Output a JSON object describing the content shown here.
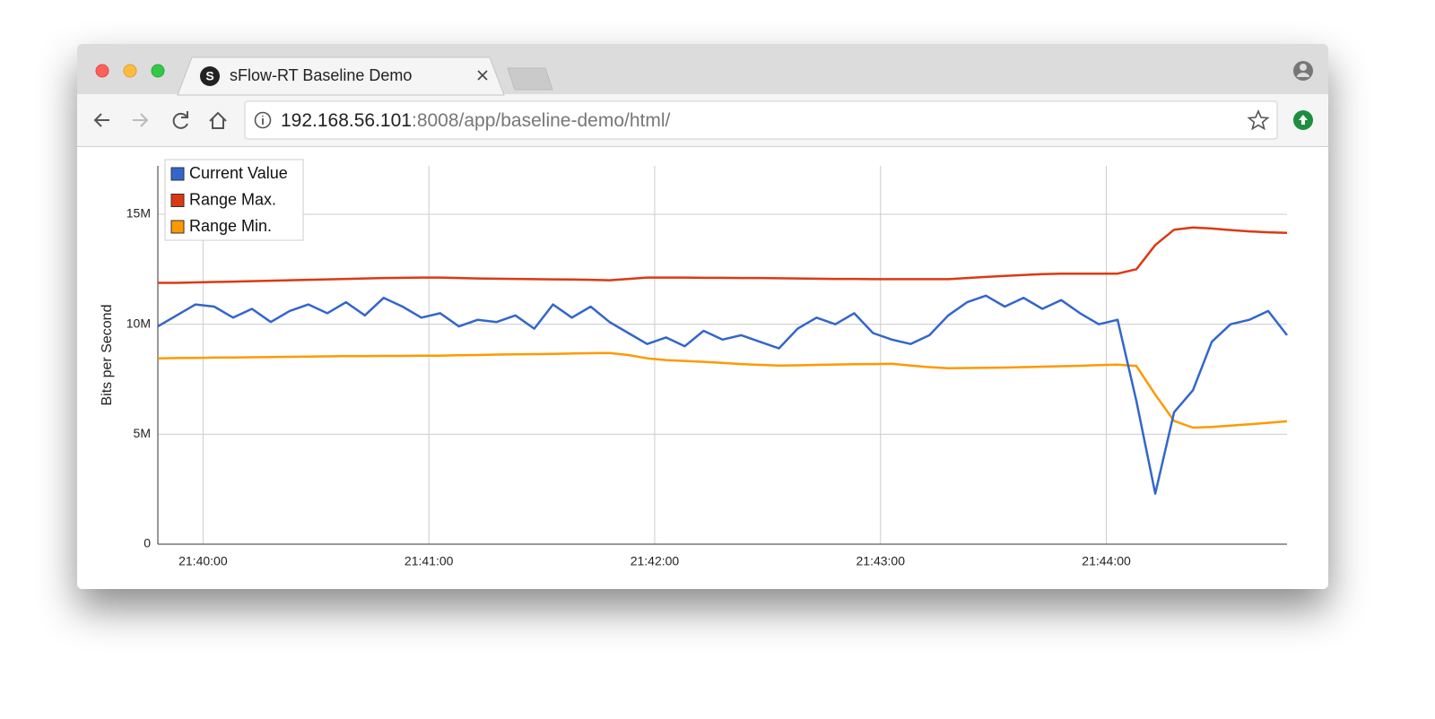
{
  "browser": {
    "tab_title": "sFlow-RT Baseline Demo",
    "tab_icon": "S",
    "url_host": "192.168.56.101",
    "url_path": ":8008/app/baseline-demo/html/"
  },
  "chart_data": {
    "type": "line",
    "ylabel": "Bits per Second",
    "x": [
      "21:39:48",
      "21:39:53",
      "21:39:58",
      "21:40:03",
      "21:40:08",
      "21:40:13",
      "21:40:18",
      "21:40:23",
      "21:40:28",
      "21:40:33",
      "21:40:38",
      "21:40:43",
      "21:40:48",
      "21:40:53",
      "21:40:58",
      "21:41:03",
      "21:41:08",
      "21:41:13",
      "21:41:18",
      "21:41:23",
      "21:41:28",
      "21:41:33",
      "21:41:38",
      "21:41:43",
      "21:41:48",
      "21:41:53",
      "21:41:58",
      "21:42:03",
      "21:42:08",
      "21:42:13",
      "21:42:18",
      "21:42:23",
      "21:42:28",
      "21:42:33",
      "21:42:38",
      "21:42:43",
      "21:42:48",
      "21:42:53",
      "21:42:58",
      "21:43:03",
      "21:43:08",
      "21:43:13",
      "21:43:18",
      "21:43:23",
      "21:43:28",
      "21:43:33",
      "21:43:38",
      "21:43:43",
      "21:43:48",
      "21:43:53",
      "21:43:58",
      "21:44:03",
      "21:44:08",
      "21:44:13",
      "21:44:18",
      "21:44:23",
      "21:44:28",
      "21:44:33",
      "21:44:38",
      "21:44:43",
      "21:44:48"
    ],
    "series": [
      {
        "name": "Current Value",
        "color": "#3366cc",
        "values": [
          9900000,
          10400000,
          10900000,
          10800000,
          10300000,
          10700000,
          10100000,
          10600000,
          10900000,
          10500000,
          11000000,
          10400000,
          11200000,
          10800000,
          10300000,
          10500000,
          9900000,
          10200000,
          10100000,
          10400000,
          9800000,
          10900000,
          10300000,
          10800000,
          10100000,
          9600000,
          9100000,
          9400000,
          9000000,
          9700000,
          9300000,
          9500000,
          9200000,
          8900000,
          9800000,
          10300000,
          10000000,
          10500000,
          9600000,
          9300000,
          9100000,
          9500000,
          10400000,
          11000000,
          11300000,
          10800000,
          11200000,
          10700000,
          11100000,
          10500000,
          10000000,
          10200000,
          6500000,
          2300000,
          6000000,
          7000000,
          9200000,
          10000000,
          10200000,
          10600000,
          9500000
        ]
      },
      {
        "name": "Range Max.",
        "color": "#dc3912",
        "values": [
          11880000,
          11880000,
          11900000,
          11920000,
          11940000,
          11960000,
          11980000,
          12000000,
          12020000,
          12040000,
          12060000,
          12080000,
          12100000,
          12110000,
          12120000,
          12120000,
          12100000,
          12080000,
          12070000,
          12060000,
          12050000,
          12040000,
          12030000,
          12020000,
          12000000,
          12060000,
          12120000,
          12120000,
          12120000,
          12110000,
          12110000,
          12100000,
          12100000,
          12090000,
          12080000,
          12070000,
          12060000,
          12060000,
          12050000,
          12050000,
          12050000,
          12050000,
          12050000,
          12100000,
          12150000,
          12200000,
          12240000,
          12280000,
          12300000,
          12300000,
          12300000,
          12300000,
          12500000,
          13600000,
          14300000,
          14400000,
          14350000,
          14280000,
          14220000,
          14180000,
          14150000
        ]
      },
      {
        "name": "Range Min.",
        "color": "#ff9900",
        "values": [
          8450000,
          8460000,
          8470000,
          8480000,
          8490000,
          8500000,
          8510000,
          8520000,
          8530000,
          8540000,
          8550000,
          8550000,
          8560000,
          8560000,
          8570000,
          8570000,
          8590000,
          8600000,
          8620000,
          8630000,
          8640000,
          8650000,
          8670000,
          8680000,
          8690000,
          8600000,
          8450000,
          8370000,
          8330000,
          8290000,
          8240000,
          8190000,
          8150000,
          8120000,
          8130000,
          8150000,
          8170000,
          8180000,
          8190000,
          8200000,
          8120000,
          8050000,
          8000000,
          8010000,
          8020000,
          8030000,
          8050000,
          8070000,
          8090000,
          8110000,
          8140000,
          8160000,
          8100000,
          6800000,
          5600000,
          5300000,
          5330000,
          5390000,
          5450000,
          5520000,
          5590000
        ]
      }
    ],
    "xlim": [
      "21:39:48",
      "21:44:48"
    ],
    "xticks": [
      "21:40:00",
      "21:41:00",
      "21:42:00",
      "21:43:00",
      "21:44:00"
    ],
    "ylim": [
      0,
      17200000
    ],
    "yticks": [
      0,
      {
        "value": 5000000,
        "label": "5M"
      },
      {
        "value": 10000000,
        "label": "10M"
      },
      {
        "value": 15000000,
        "label": "15M"
      }
    ],
    "grid": true,
    "legend": "upper left"
  }
}
